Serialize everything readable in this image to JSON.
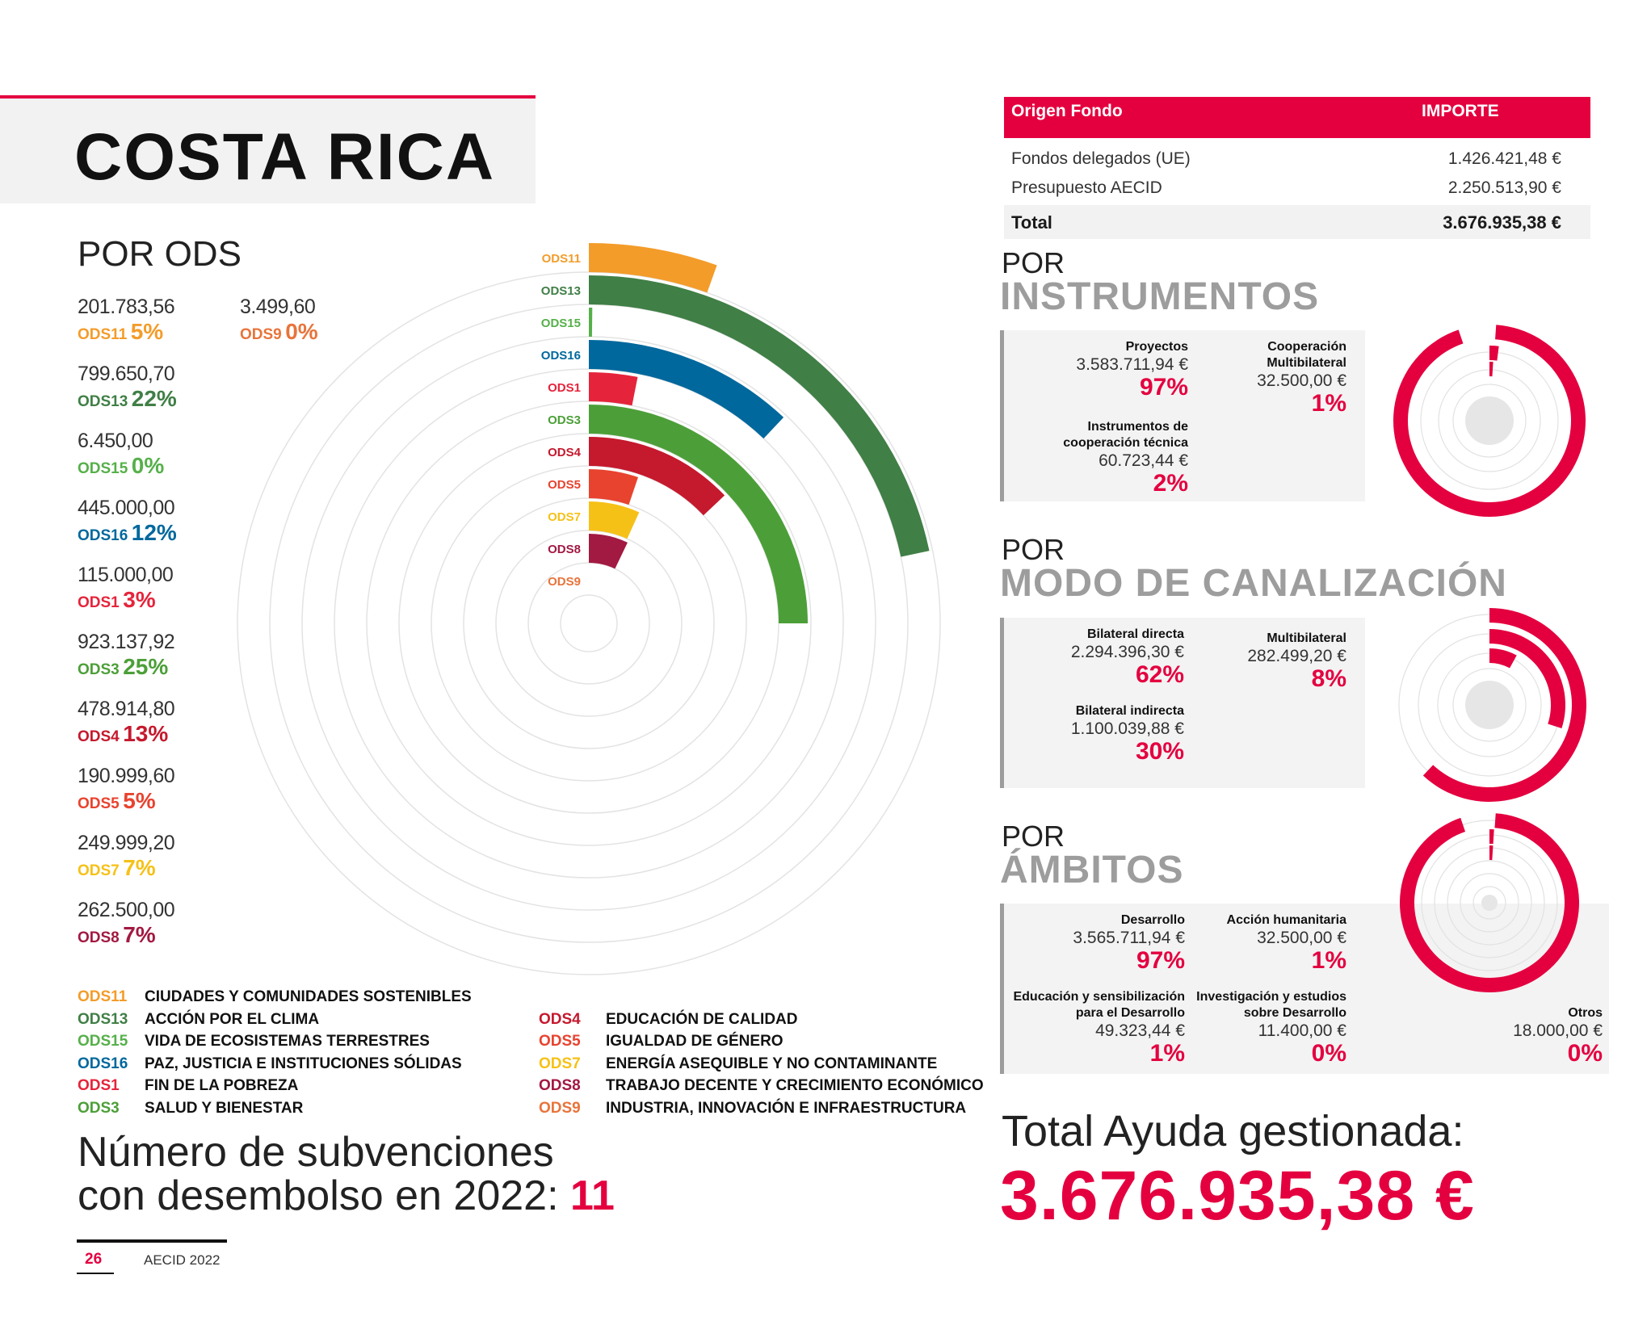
{
  "header": {
    "title": "COSTA RICA"
  },
  "ods_section": {
    "title": "POR ODS",
    "items": [
      {
        "value": "201.783,56",
        "code": "ODS11",
        "pct": "5%",
        "color": "#f39c2a"
      },
      {
        "value": "3.499,60",
        "code": "ODS9",
        "pct": "0%",
        "color": "#e8743b"
      },
      {
        "value": "799.650,70",
        "code": "ODS13",
        "pct": "22%",
        "color": "#407f46"
      },
      {
        "value": "6.450,00",
        "code": "ODS15",
        "pct": "0%",
        "color": "#56b04a"
      },
      {
        "value": "445.000,00",
        "code": "ODS16",
        "pct": "12%",
        "color": "#00689d"
      },
      {
        "value": "115.000,00",
        "code": "ODS1",
        "pct": "3%",
        "color": "#e5243b"
      },
      {
        "value": "923.137,92",
        "code": "ODS3",
        "pct": "25%",
        "color": "#4c9f38"
      },
      {
        "value": "478.914,80",
        "code": "ODS4",
        "pct": "13%",
        "color": "#c5192d"
      },
      {
        "value": "190.999,60",
        "code": "ODS5",
        "pct": "5%",
        "color": "#e8432f"
      },
      {
        "value": "249.999,20",
        "code": "ODS7",
        "pct": "7%",
        "color": "#f6c117"
      },
      {
        "value": "262.500,00",
        "code": "ODS8",
        "pct": "7%",
        "color": "#a21942"
      }
    ]
  },
  "legend": [
    {
      "code": "ODS11",
      "label": "CIUDADES Y COMUNIDADES SOSTENIBLES",
      "color": "#f39c2a"
    },
    {
      "code": "ODS13",
      "label": "ACCIÓN POR EL CLIMA",
      "color": "#407f46"
    },
    {
      "code": "ODS15",
      "label": "VIDA DE ECOSISTEMAS TERRESTRES",
      "color": "#56b04a"
    },
    {
      "code": "ODS16",
      "label": "PAZ, JUSTICIA E INSTITUCIONES SÓLIDAS",
      "color": "#00689d"
    },
    {
      "code": "ODS1",
      "label": "FIN DE LA POBREZA",
      "color": "#e5243b"
    },
    {
      "code": "ODS3",
      "label": "SALUD Y BIENESTAR",
      "color": "#4c9f38"
    },
    {
      "code": "ODS4",
      "label": "EDUCACIÓN DE CALIDAD",
      "color": "#c5192d"
    },
    {
      "code": "ODS5",
      "label": "IGUALDAD DE GÉNERO",
      "color": "#e8432f"
    },
    {
      "code": "ODS7",
      "label": "ENERGÍA ASEQUIBLE Y NO CONTAMINANTE",
      "color": "#f6c117"
    },
    {
      "code": "ODS8",
      "label": "TRABAJO DECENTE Y CRECIMIENTO ECONÓMICO",
      "color": "#a21942"
    },
    {
      "code": "ODS9",
      "label": "INDUSTRIA, INNOVACIÓN E INFRAESTRUCTURA",
      "color": "#e8743b"
    }
  ],
  "subvenciones": {
    "line1": "Número de subvenciones",
    "line2": "con desembolso en 2022:",
    "count": "11"
  },
  "footer": {
    "page": "26",
    "publication": "AECID 2022"
  },
  "fund_table": {
    "headers": [
      "Origen Fondo",
      "IMPORTE"
    ],
    "rows": [
      {
        "origin": "Fondos delegados (UE)",
        "amount": "1.426.421,48 €"
      },
      {
        "origin": "Presupuesto AECID",
        "amount": "2.250.513,90 €"
      }
    ],
    "total_label": "Total",
    "total_amount": "3.676.935,38 €"
  },
  "instrumentos": {
    "por": "POR",
    "title": "INSTRUMENTOS",
    "items": [
      {
        "name": "Proyectos",
        "amount": "3.583.711,94 €",
        "pct": "97%"
      },
      {
        "name": "Cooperación Multibilateral",
        "amount": "32.500,00 €",
        "pct": "1%"
      },
      {
        "name": "Instrumentos de cooperación técnica",
        "amount": "60.723,44 €",
        "pct": "2%"
      }
    ]
  },
  "canalizacion": {
    "por": "POR",
    "title": "MODO DE CANALIZACIÓN",
    "items": [
      {
        "name": "Bilateral directa",
        "amount": "2.294.396,30 €",
        "pct": "62%"
      },
      {
        "name": "Multibilateral",
        "amount": "282.499,20 €",
        "pct": "8%"
      },
      {
        "name": "Bilateral indirecta",
        "amount": "1.100.039,88 €",
        "pct": "30%"
      }
    ]
  },
  "ambitos": {
    "por": "POR",
    "title": "ÁMBITOS",
    "items": [
      {
        "name": "Desarrollo",
        "amount": "3.565.711,94 €",
        "pct": "97%"
      },
      {
        "name": "Acción humanitaria",
        "amount": "32.500,00 €",
        "pct": "1%"
      },
      {
        "name": "Educación y sensibilización para el Desarrollo",
        "amount": "49.323,44 €",
        "pct": "1%"
      },
      {
        "name": "Investigación y estudios sobre Desarrollo",
        "amount": "11.400,00 €",
        "pct": "0%"
      },
      {
        "name": "Otros",
        "amount": "18.000,00 €",
        "pct": "0%"
      }
    ]
  },
  "total_ayuda": {
    "label": "Total Ayuda gestionada:",
    "amount": "3.676.935,38 €"
  },
  "colors": {
    "accent": "#e4003f",
    "section_gray": "#9d9d9d"
  },
  "chart_data": [
    {
      "type": "radial-bar",
      "categories": [
        "ODS11",
        "ODS13",
        "ODS15",
        "ODS16",
        "ODS1",
        "ODS3",
        "ODS4",
        "ODS5",
        "ODS7",
        "ODS8",
        "ODS9"
      ],
      "values": [
        201783.56,
        799650.7,
        6450.0,
        445000.0,
        115000.0,
        923137.92,
        478914.8,
        190999.6,
        249999.2,
        262500.0,
        3499.6
      ],
      "colors": [
        "#f39c2a",
        "#407f46",
        "#56b04a",
        "#00689d",
        "#e5243b",
        "#4c9f38",
        "#c5192d",
        "#e8432f",
        "#f6c117",
        "#a21942",
        "#e8743b"
      ]
    },
    {
      "type": "radial-donut",
      "name_ref": "instrumentos",
      "values_pct": [
        97,
        2,
        1
      ],
      "color": "#e4003f"
    },
    {
      "type": "radial-donut",
      "name_ref": "canalizacion",
      "values_pct": [
        62,
        30,
        8
      ],
      "color": "#e4003f"
    },
    {
      "type": "radial-donut",
      "name_ref": "ambitos",
      "values_pct": [
        97,
        1,
        1,
        0,
        0
      ],
      "color": "#e4003f"
    }
  ]
}
